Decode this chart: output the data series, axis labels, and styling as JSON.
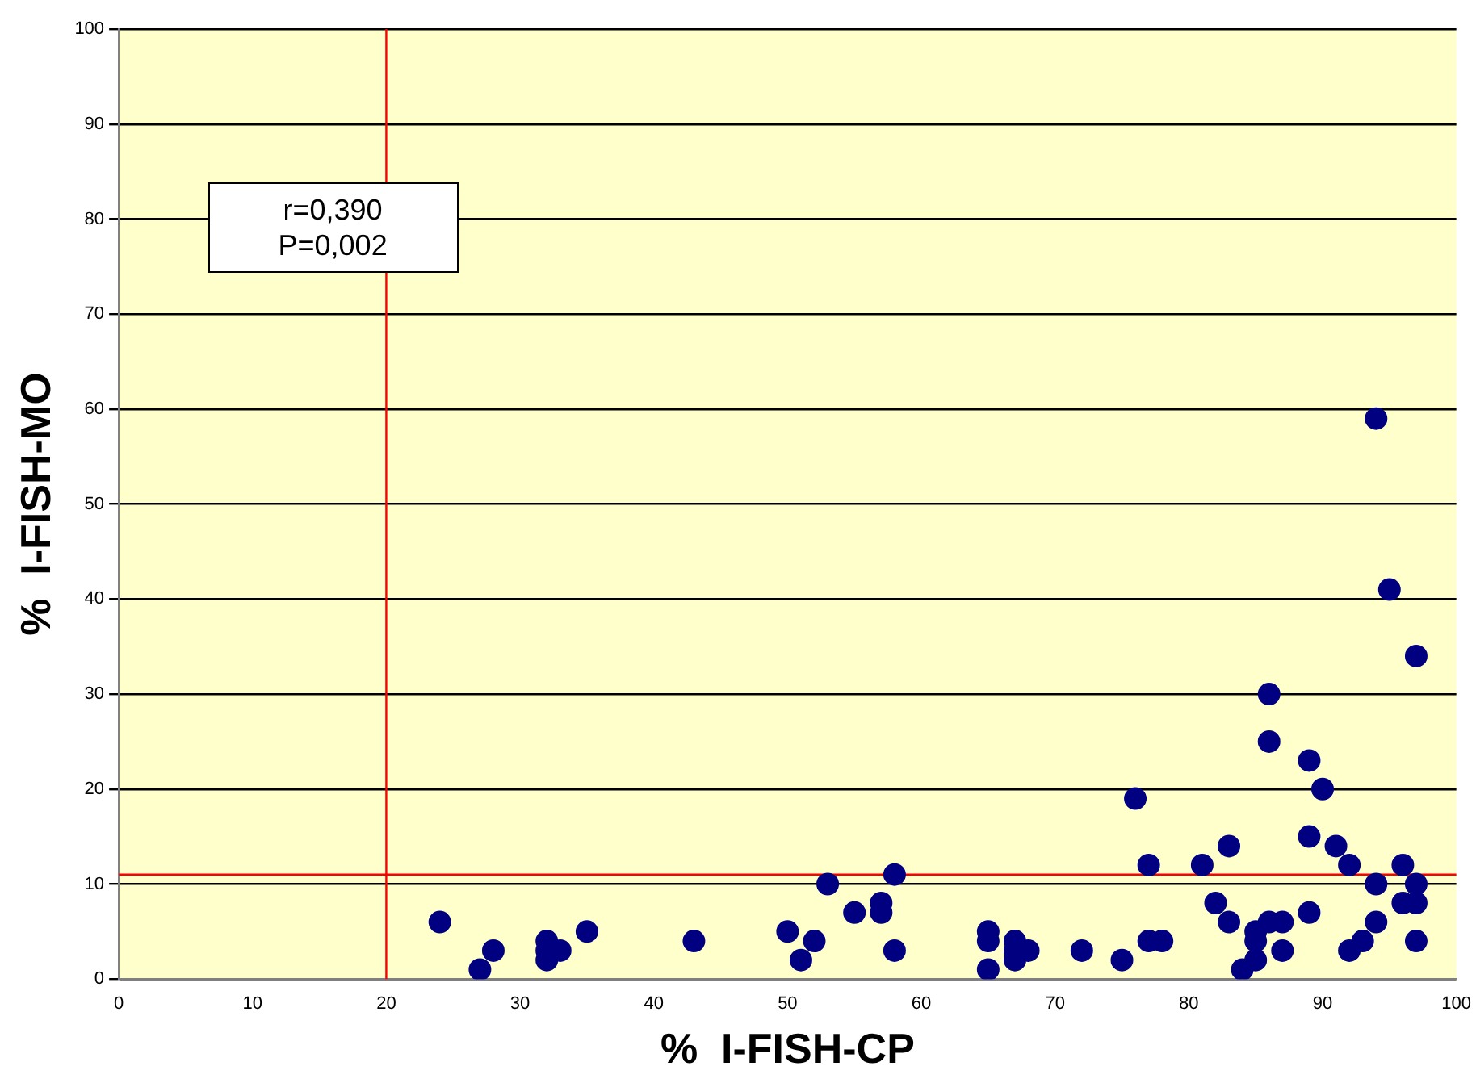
{
  "chart_data": {
    "type": "scatter",
    "xlabel": "%  I-FISH-CP",
    "ylabel": "%  I-FISH-MO",
    "annotations": [
      "r=0,390",
      "P=0,002"
    ],
    "xlim": [
      0,
      100
    ],
    "ylim": [
      0,
      100
    ],
    "xticks": [
      0,
      10,
      20,
      30,
      40,
      50,
      60,
      70,
      80,
      90,
      100
    ],
    "yticks": [
      0,
      10,
      20,
      30,
      40,
      50,
      60,
      70,
      80,
      90,
      100
    ],
    "grid": "y",
    "legend": false,
    "marker": "circle",
    "ref_lines": [
      {
        "axis": "x",
        "value": 20,
        "color": "#ff0000"
      },
      {
        "axis": "y",
        "value": 11,
        "color": "#ff0000"
      }
    ],
    "series": [
      {
        "color": "#000080",
        "x": [
          24,
          27,
          28,
          32,
          32,
          32,
          33,
          35,
          43,
          50,
          51,
          52,
          53,
          55,
          57,
          57,
          58,
          58,
          65,
          65,
          65,
          67,
          67,
          67,
          68,
          72,
          75,
          76,
          77,
          77,
          78,
          81,
          82,
          83,
          83,
          84,
          85,
          85,
          85,
          86,
          86,
          86,
          87,
          87,
          89,
          89,
          89,
          90,
          91,
          92,
          92,
          93,
          94,
          94,
          94,
          95,
          96,
          96,
          97,
          97,
          97,
          97
        ],
        "values": [
          6,
          1,
          3,
          4,
          2,
          3,
          3,
          5,
          4,
          5,
          2,
          4,
          10,
          7,
          8,
          7,
          11,
          3,
          5,
          4,
          1,
          4,
          2,
          3,
          3,
          3,
          2,
          19,
          12,
          4,
          4,
          12,
          8,
          14,
          6,
          1,
          2,
          4,
          5,
          6,
          25,
          30,
          6,
          3,
          23,
          15,
          7,
          20,
          14,
          12,
          3,
          4,
          59,
          10,
          6,
          41,
          12,
          8,
          34,
          10,
          8,
          4
        ]
      }
    ]
  }
}
